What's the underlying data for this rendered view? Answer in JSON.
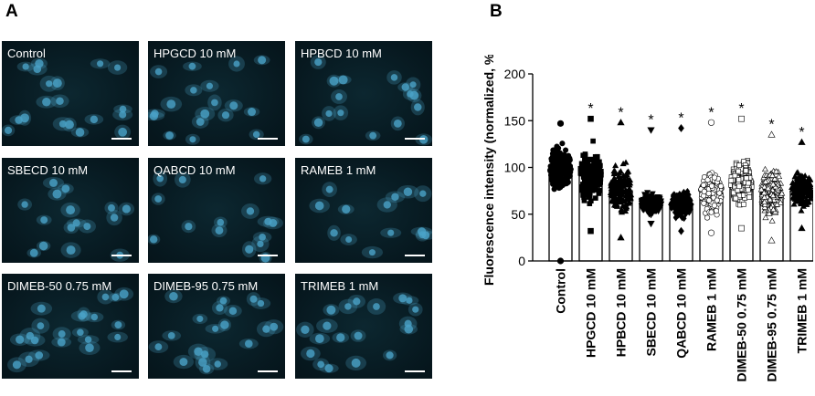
{
  "panel_a": {
    "letter": "A",
    "images": [
      {
        "label": "Control"
      },
      {
        "label": "HPGCD 10 mM"
      },
      {
        "label": "HPBCD 10 mM"
      },
      {
        "label": "SBECD 10 mM"
      },
      {
        "label": "QABCD 10 mM"
      },
      {
        "label": "RAMEB 1 mM"
      },
      {
        "label": "DIMEB-50 0.75 mM"
      },
      {
        "label": "DIMEB-95 0.75 mM"
      },
      {
        "label": "TRIMEB 1 mM"
      }
    ]
  },
  "panel_b": {
    "letter": "B"
  },
  "chart_data": {
    "type": "bar",
    "title": "",
    "xlabel": "",
    "ylabel": "Fluorescence intensity (normalized, %)",
    "ylim": [
      0,
      200
    ],
    "yticks": [
      0,
      50,
      100,
      150,
      200
    ],
    "categories": [
      "Control",
      "HPGCD 10 mM",
      "HPBCD 10 mM",
      "SBECD 10 mM",
      "QABCD 10 mM",
      "RAMEB 1 mM",
      "DIMEB-50 0.75 mM",
      "DIMEB-95 0.75 mM",
      "TRIMEB 1 mM"
    ],
    "values": [
      100,
      92,
      75,
      62,
      60,
      73,
      84,
      73,
      75
    ],
    "point_range_min": [
      0,
      32,
      25,
      40,
      32,
      30,
      35,
      22,
      35
    ],
    "point_range_max": [
      147,
      152,
      148,
      140,
      142,
      148,
      152,
      135,
      127
    ],
    "significance": [
      "",
      "*",
      "*",
      "*",
      "*",
      "*",
      "*",
      "*",
      "*"
    ],
    "marker_shapes": [
      "circle",
      "square",
      "triangle-up",
      "triangle-down",
      "diamond",
      "circle-open",
      "square-open",
      "triangle-open",
      "triangle-up"
    ],
    "grid": false,
    "legend": "none",
    "bar_color": "#ffffff",
    "edge_color": "#000000",
    "cell_color": "#4aa3c8"
  }
}
